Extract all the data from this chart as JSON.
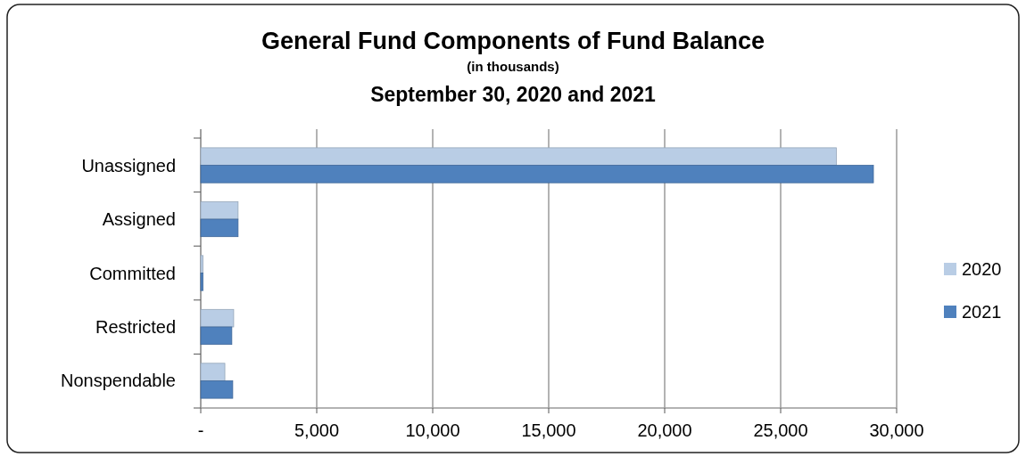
{
  "chart_data": {
    "type": "bar",
    "orientation": "horizontal",
    "title": "General Fund Components of Fund Balance",
    "subtitle": "(in thousands)",
    "annotations": [
      "September 30, 2020 and 2021"
    ],
    "categories": [
      "Unassigned",
      "Assigned",
      "Committed",
      "Restricted",
      "Nonspendable"
    ],
    "series": [
      {
        "name": "2020",
        "color": "#b9cde5",
        "values": [
          27400,
          1610,
          100,
          1420,
          1040
        ]
      },
      {
        "name": "2021",
        "color": "#4f81bd",
        "values": [
          29000,
          1610,
          100,
          1340,
          1380
        ]
      }
    ],
    "xlim": [
      0,
      30000
    ],
    "xticks": [
      {
        "value": 0,
        "label": "-"
      },
      {
        "value": 5000,
        "label": "5,000"
      },
      {
        "value": 10000,
        "label": "10,000"
      },
      {
        "value": 15000,
        "label": "15,000"
      },
      {
        "value": 20000,
        "label": "20,000"
      },
      {
        "value": 25000,
        "label": "25,000"
      },
      {
        "value": 30000,
        "label": "30,000"
      }
    ],
    "grid": "x",
    "legend": "right"
  }
}
